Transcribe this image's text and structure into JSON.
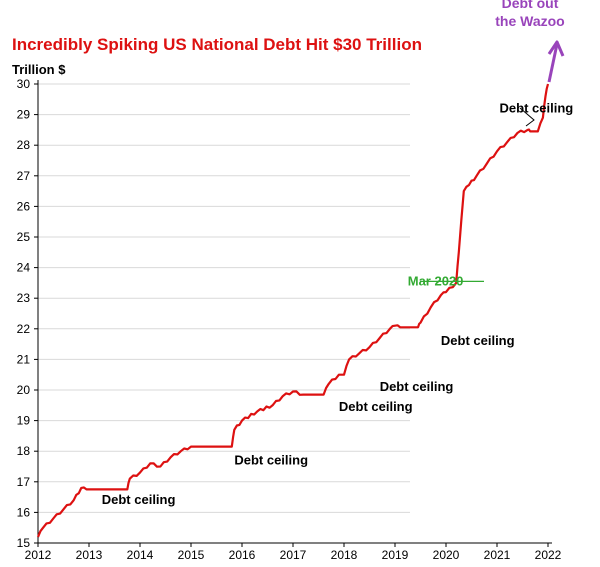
{
  "chart_data": {
    "type": "line",
    "title": "Incredibly Spiking US National Debt Hit $30 Trillion",
    "ylabel": "Trillion $",
    "xlabel": "",
    "xlim": [
      2012,
      2022
    ],
    "ylim": [
      15,
      30
    ],
    "x_ticks": [
      "2012",
      "2013",
      "2014",
      "2015",
      "2016",
      "2017",
      "2018",
      "2019",
      "2020",
      "2021",
      "2022"
    ],
    "y_ticks": [
      "15",
      "16",
      "17",
      "18",
      "19",
      "20",
      "21",
      "22",
      "23",
      "24",
      "25",
      "26",
      "27",
      "28",
      "29",
      "30"
    ],
    "grid": "horizontal",
    "colors": {
      "line": "#dd1111",
      "title": "#dd1111",
      "mar2020": "#33aa33",
      "wazoo": "#9944bb",
      "grid": "#d9d9d9"
    },
    "series": [
      {
        "x": [
          2012.0,
          2012.1,
          2012.3,
          2012.5,
          2012.7,
          2012.85,
          2012.95,
          2013.0,
          2013.3,
          2013.75,
          2013.8,
          2014.0,
          2014.2,
          2014.4,
          2014.6,
          2014.8,
          2015.0,
          2015.2,
          2015.5,
          2015.8,
          2015.85,
          2016.0,
          2016.3,
          2016.6,
          2016.8,
          2017.0,
          2017.2,
          2017.6,
          2017.7,
          2017.9,
          2018.0,
          2018.1,
          2018.3,
          2018.5,
          2018.7,
          2018.9,
          2019.0,
          2019.1,
          2019.45,
          2019.5,
          2019.7,
          2019.9,
          2020.0,
          2020.2,
          2020.25,
          2020.35,
          2020.45,
          2020.6,
          2020.8,
          2021.0,
          2021.2,
          2021.4,
          2021.6,
          2021.65,
          2021.8,
          2021.9,
          2021.95,
          2022.0
        ],
        "values": [
          15.2,
          15.5,
          15.8,
          16.1,
          16.4,
          16.8,
          16.75,
          16.75,
          16.75,
          16.75,
          17.1,
          17.3,
          17.6,
          17.5,
          17.8,
          18.0,
          18.15,
          18.15,
          18.15,
          18.15,
          18.7,
          19.0,
          19.3,
          19.5,
          19.8,
          19.95,
          19.85,
          19.85,
          20.2,
          20.5,
          20.5,
          21.0,
          21.2,
          21.4,
          21.7,
          22.0,
          22.1,
          22.05,
          22.05,
          22.2,
          22.7,
          23.1,
          23.2,
          23.5,
          24.5,
          26.5,
          26.7,
          27.0,
          27.4,
          27.8,
          28.1,
          28.4,
          28.5,
          28.45,
          28.45,
          28.9,
          29.6,
          30.0
        ]
      }
    ],
    "annotations": [
      {
        "text": "Debt ceiling",
        "x": 2013.25,
        "y": 16.4
      },
      {
        "text": "Debt ceiling",
        "x": 2015.85,
        "y": 17.7
      },
      {
        "text": "Debt ceiling",
        "x": 2017.9,
        "y": 19.45
      },
      {
        "text": "Debt ceiling",
        "x": 2018.7,
        "y": 20.1
      },
      {
        "text": "Debt ceiling",
        "x": 2019.9,
        "y": 21.6
      },
      {
        "text": "Debt ceiling",
        "x": 2021.05,
        "y": 29.2
      },
      {
        "text": "Mar 2020",
        "x": 2019.25,
        "y": 23.55
      }
    ],
    "wazoo_label": [
      "Debt out",
      "the Wazoo"
    ]
  }
}
